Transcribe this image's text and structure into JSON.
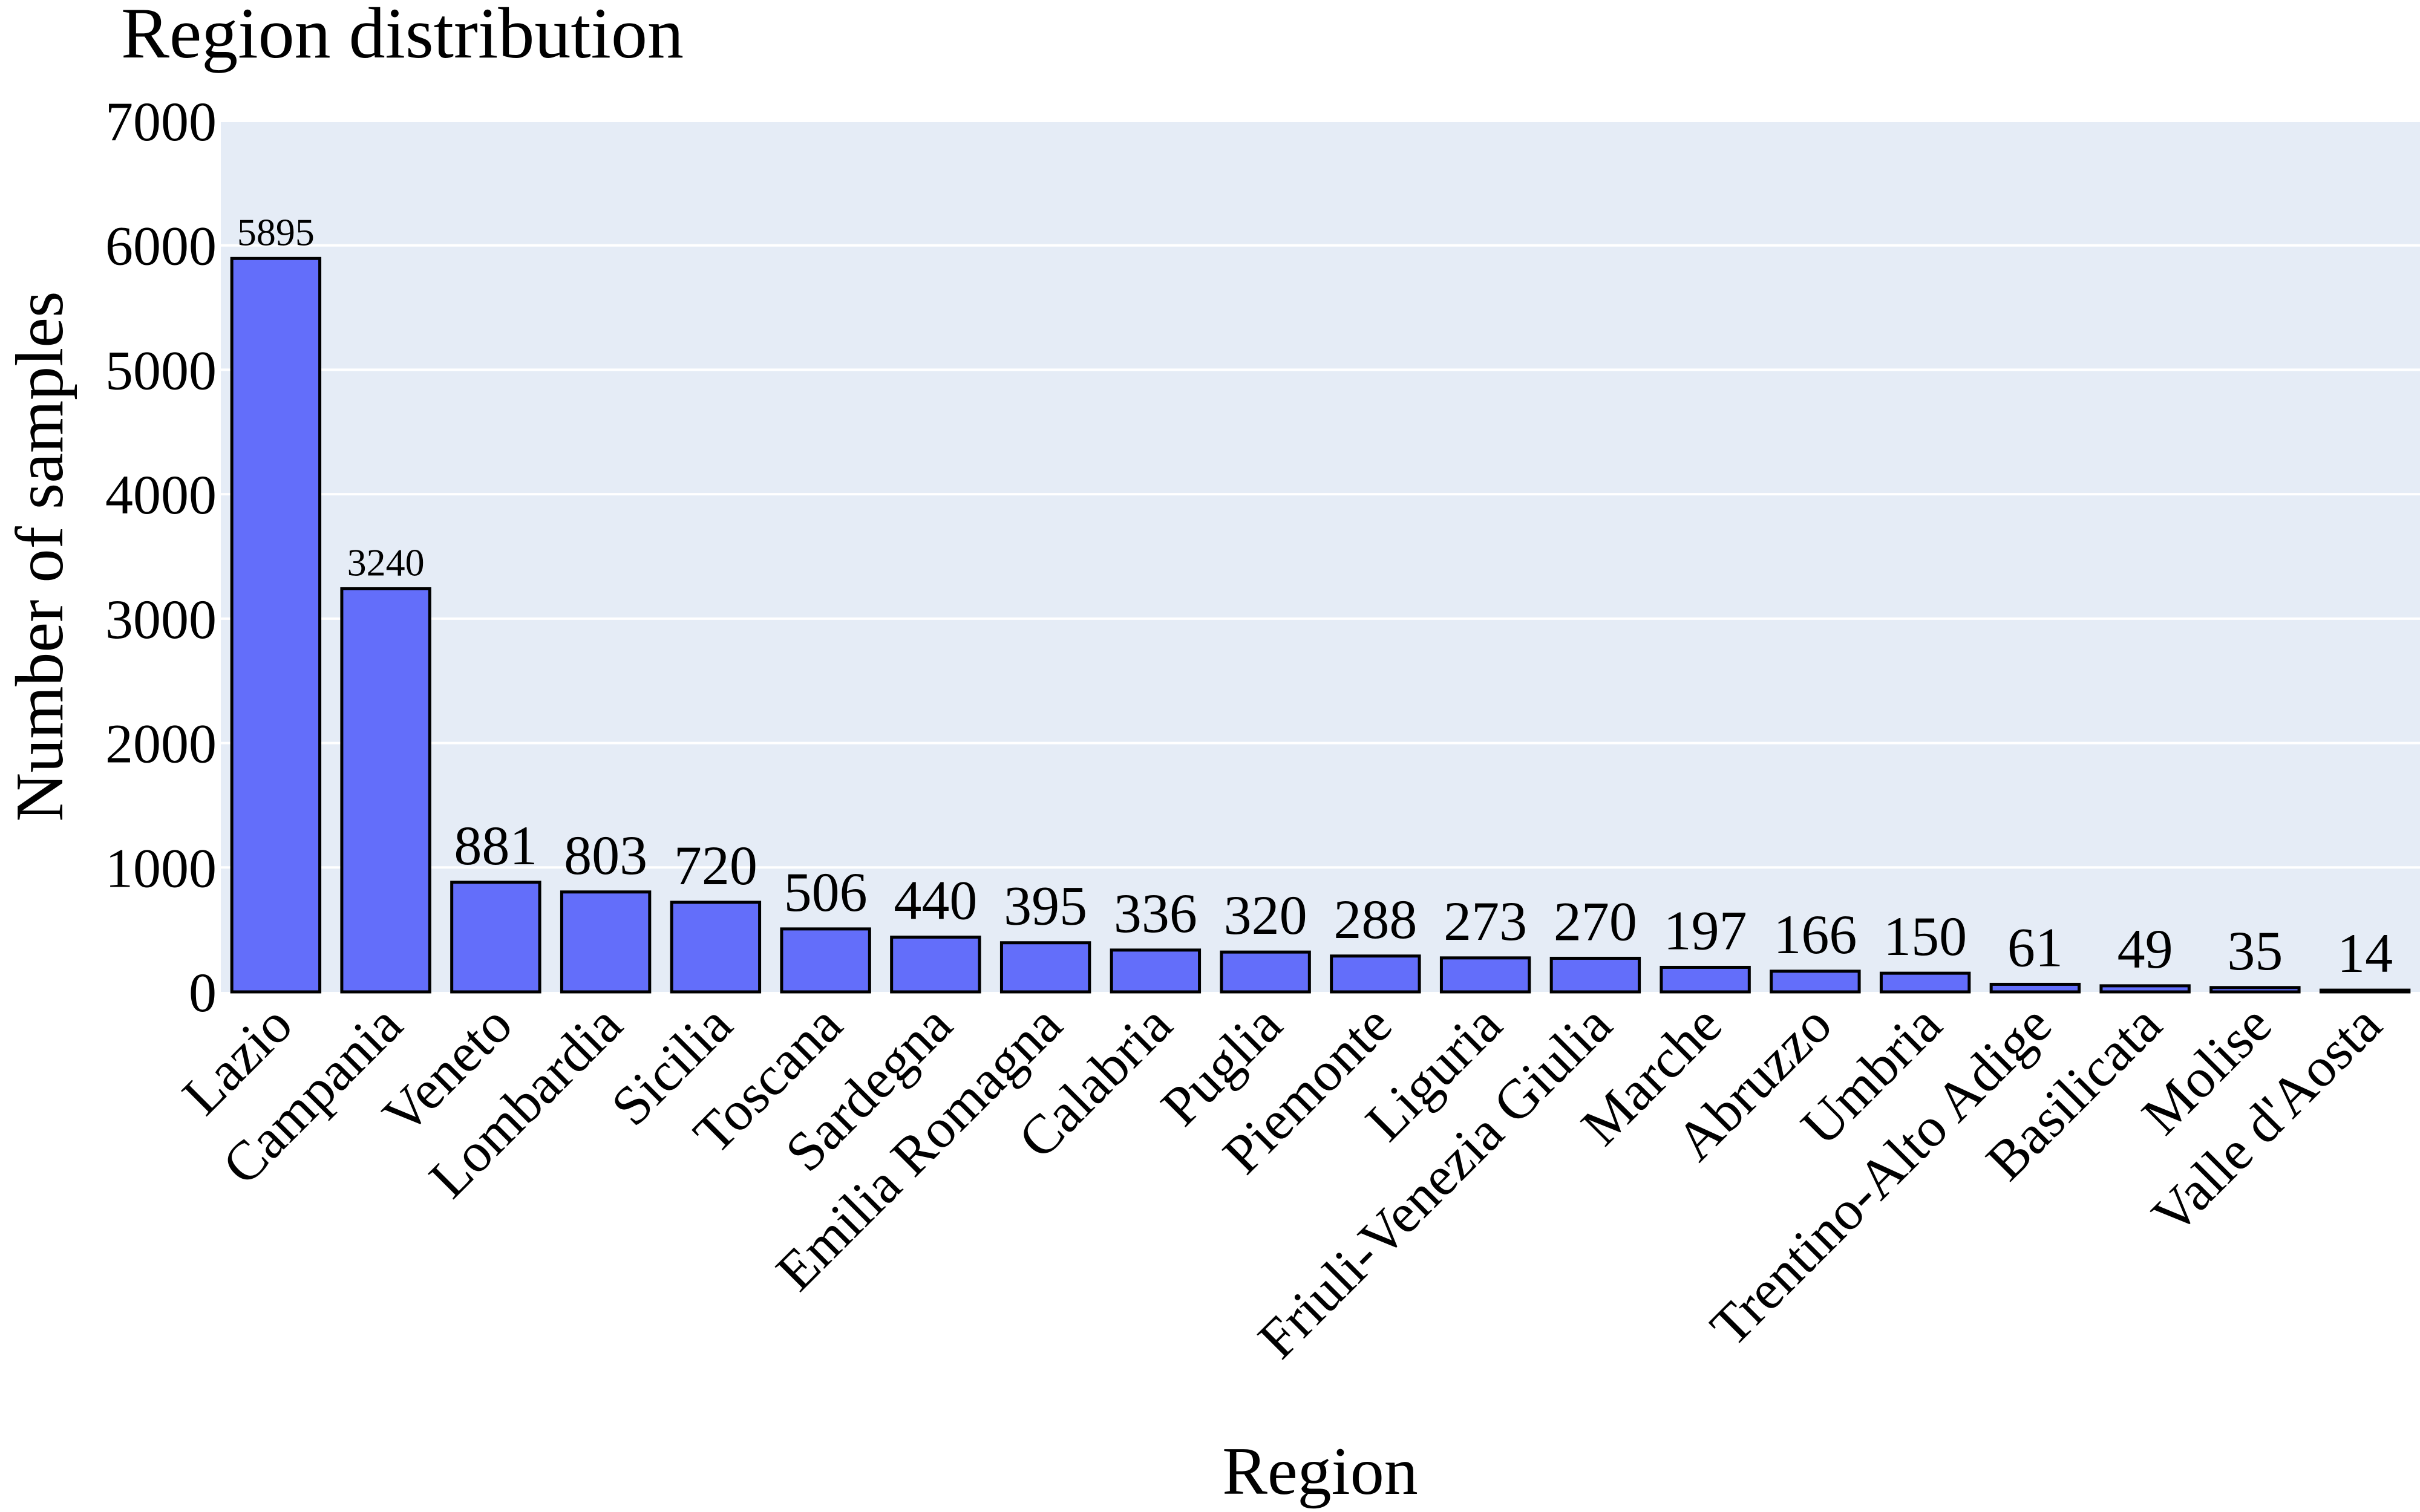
{
  "colors": {
    "plot_background": "#e5ecf6",
    "bar_fill": "#636efa",
    "bar_outline": "#000000",
    "grid": "#ffffff"
  },
  "chart_data": {
    "type": "bar",
    "title": "Region distribution",
    "xlabel": "Region",
    "ylabel": "Number of samples",
    "ylim": [
      0,
      7000
    ],
    "yticks": [
      0,
      1000,
      2000,
      3000,
      4000,
      5000,
      6000,
      7000
    ],
    "grid": true,
    "legend": "none",
    "categories": [
      "Lazio",
      "Campania",
      "Veneto",
      "Lombardia",
      "Sicilia",
      "Toscana",
      "Sardegna",
      "Emilia Romagna",
      "Calabria",
      "Puglia",
      "Piemonte",
      "Liguria",
      "Friuli-Venezia Giulia",
      "Marche",
      "Abruzzo",
      "Umbria",
      "Trentino-Alto Adige",
      "Basilicata",
      "Molise",
      "Valle d'Aosta"
    ],
    "values": [
      5895,
      3240,
      881,
      803,
      720,
      506,
      440,
      395,
      336,
      320,
      288,
      273,
      270,
      197,
      166,
      150,
      61,
      49,
      35,
      14
    ],
    "data_labels": [
      "5895",
      "3240",
      "881",
      "803",
      "720",
      "506",
      "440",
      "395",
      "336",
      "320",
      "288",
      "273",
      "270",
      "197",
      "166",
      "150",
      "61",
      "49",
      "35",
      "14"
    ]
  }
}
